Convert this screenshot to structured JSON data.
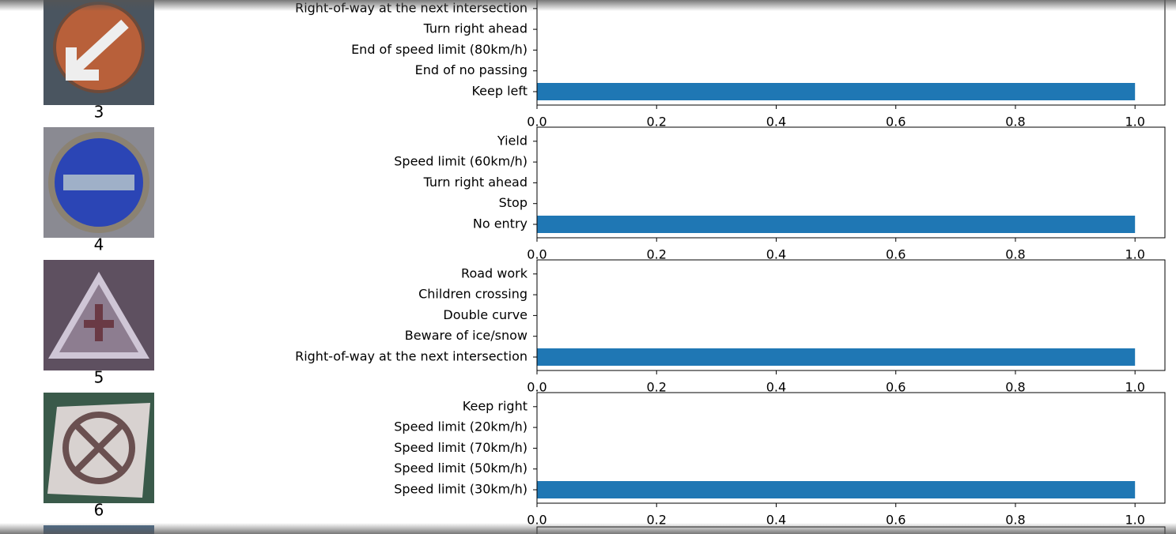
{
  "chart_data": [
    {
      "type": "bar",
      "orientation": "horizontal",
      "image_label": "3",
      "categories": [
        "Keep left",
        "End of no passing",
        "End of speed limit (80km/h)",
        "Turn right ahead",
        "Right-of-way at the next intersection"
      ],
      "values": [
        1,
        0,
        0,
        0,
        0
      ],
      "color": "#1f77b4",
      "xlim": [
        0,
        1.05
      ],
      "xticks": [
        {
          "value": 0,
          "label": "0.0"
        },
        {
          "value": 0.2,
          "label": "0.2"
        },
        {
          "value": 0.4,
          "label": "0.4"
        },
        {
          "value": 0.6,
          "label": "0.6"
        },
        {
          "value": 0.8,
          "label": "0.8"
        },
        {
          "value": 1,
          "label": "1.0"
        }
      ]
    },
    {
      "type": "bar",
      "orientation": "horizontal",
      "image_label": "4",
      "categories": [
        "No entry",
        "Stop",
        "Turn right ahead",
        "Speed limit (60km/h)",
        "Yield"
      ],
      "values": [
        1,
        0,
        0,
        0,
        0
      ],
      "color": "#1f77b4",
      "xlim": [
        0,
        1.05
      ],
      "xticks": [
        {
          "value": 0,
          "label": "0.0"
        },
        {
          "value": 0.2,
          "label": "0.2"
        },
        {
          "value": 0.4,
          "label": "0.4"
        },
        {
          "value": 0.6,
          "label": "0.6"
        },
        {
          "value": 0.8,
          "label": "0.8"
        },
        {
          "value": 1,
          "label": "1.0"
        }
      ]
    },
    {
      "type": "bar",
      "orientation": "horizontal",
      "image_label": "5",
      "categories": [
        "Right-of-way at the next intersection",
        "Beware of ice/snow",
        "Double curve",
        "Children crossing",
        "Road work"
      ],
      "values": [
        1,
        0,
        0,
        0,
        0
      ],
      "color": "#1f77b4",
      "xlim": [
        0,
        1.05
      ],
      "xticks": [
        {
          "value": 0,
          "label": "0.0"
        },
        {
          "value": 0.2,
          "label": "0.2"
        },
        {
          "value": 0.4,
          "label": "0.4"
        },
        {
          "value": 0.6,
          "label": "0.6"
        },
        {
          "value": 0.8,
          "label": "0.8"
        },
        {
          "value": 1,
          "label": "1.0"
        }
      ]
    },
    {
      "type": "bar",
      "orientation": "horizontal",
      "image_label": "6",
      "categories": [
        "Speed limit (30km/h)",
        "Speed limit (50km/h)",
        "Speed limit (70km/h)",
        "Speed limit (20km/h)",
        "Keep right"
      ],
      "values": [
        1,
        0,
        0,
        0,
        0
      ],
      "color": "#1f77b4",
      "xlim": [
        0,
        1.05
      ],
      "xticks": [
        {
          "value": 0,
          "label": "0.0"
        },
        {
          "value": 0.2,
          "label": "0.2"
        },
        {
          "value": 0.4,
          "label": "0.4"
        },
        {
          "value": 0.6,
          "label": "0.6"
        },
        {
          "value": 0.8,
          "label": "0.8"
        },
        {
          "value": 1,
          "label": "1.0"
        }
      ]
    }
  ]
}
